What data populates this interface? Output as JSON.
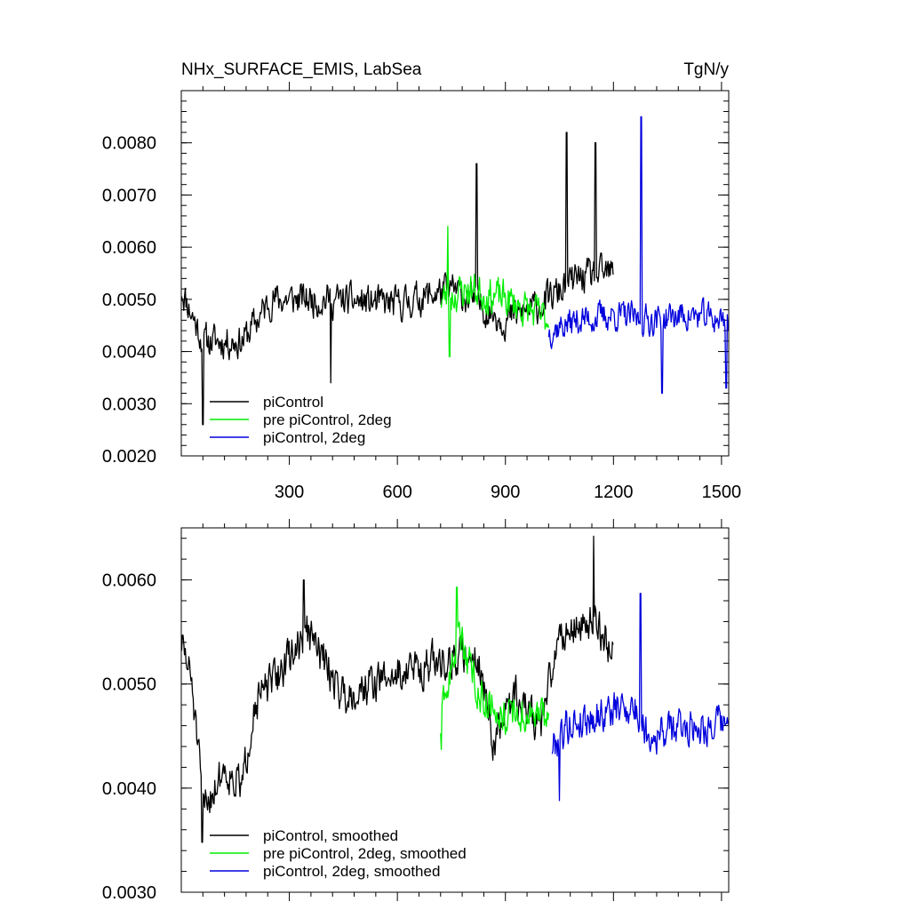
{
  "chart_data": [
    {
      "type": "line",
      "title_left": "NHx_SURFACE_EMIS, LabSea",
      "title_right": "TgN/y",
      "xlim": [
        0,
        1520
      ],
      "ylim": [
        0.002,
        0.009
      ],
      "x_ticks": [
        300,
        600,
        900,
        1200,
        1500
      ],
      "x_tick_labels": [
        "300",
        "600",
        "900",
        "1200",
        "1500"
      ],
      "y_ticks": [
        0.002,
        0.003,
        0.004,
        0.005,
        0.006,
        0.007,
        0.008
      ],
      "y_tick_labels": [
        "0.0020",
        "0.0030",
        "0.0040",
        "0.0050",
        "0.0060",
        "0.0070",
        "0.0080"
      ],
      "legend_position": "lower-left",
      "series": [
        {
          "name": "piControl",
          "color": "#000000",
          "x_range": [
            1,
            1200
          ],
          "level_points": [
            [
              1,
              0.0052
            ],
            [
              60,
              0.0042
            ],
            [
              170,
              0.0042
            ],
            [
              250,
              0.005
            ],
            [
              400,
              0.005
            ],
            [
              600,
              0.0049
            ],
            [
              750,
              0.0052
            ],
            [
              900,
              0.0046
            ],
            [
              1000,
              0.0049
            ],
            [
              1100,
              0.0054
            ],
            [
              1200,
              0.0055
            ]
          ],
          "amplitude": 0.0005,
          "spikes": [
            [
              1070,
              0.0082
            ],
            [
              1150,
              0.008
            ],
            [
              820,
              0.0076
            ],
            [
              415,
              0.0034
            ],
            [
              60,
              0.0026
            ]
          ],
          "seed": 11
        },
        {
          "name": "pre piControl, 2deg",
          "color": "#00ee00",
          "x_range": [
            720,
            1020
          ],
          "level_points": [
            [
              720,
              0.005
            ],
            [
              800,
              0.0052
            ],
            [
              900,
              0.005
            ],
            [
              1020,
              0.0046
            ]
          ],
          "amplitude": 0.00055,
          "spikes": [
            [
              740,
              0.0064
            ],
            [
              745,
              0.0039
            ]
          ],
          "seed": 23
        },
        {
          "name": "piControl, 2deg",
          "color": "#0000dd",
          "x_range": [
            1020,
            1520
          ],
          "level_points": [
            [
              1020,
              0.0044
            ],
            [
              1100,
              0.0046
            ],
            [
              1200,
              0.0047
            ],
            [
              1300,
              0.0046
            ],
            [
              1400,
              0.0047
            ],
            [
              1520,
              0.0046
            ]
          ],
          "amplitude": 0.00045,
          "spikes": [
            [
              1277,
              0.0085
            ],
            [
              1335,
              0.0032
            ],
            [
              1513,
              0.0033
            ]
          ],
          "seed": 37
        }
      ]
    },
    {
      "type": "line",
      "xlim": [
        0,
        1520
      ],
      "ylim": [
        0.003,
        0.0065
      ],
      "x_ticks": [
        300,
        600,
        900,
        1200,
        1500
      ],
      "x_tick_labels": [],
      "y_ticks": [
        0.003,
        0.004,
        0.005,
        0.006
      ],
      "y_tick_labels": [
        "0.0030",
        "0.0040",
        "0.0050",
        "0.0060"
      ],
      "legend_position": "lower-left",
      "series": [
        {
          "name": "piControl, smoothed",
          "color": "#000000",
          "x_range": [
            1,
            1200
          ],
          "level_points": [
            [
              1,
              0.0054
            ],
            [
              30,
              0.005
            ],
            [
              60,
              0.0038
            ],
            [
              120,
              0.0042
            ],
            [
              170,
              0.004
            ],
            [
              200,
              0.0048
            ],
            [
              250,
              0.005
            ],
            [
              350,
              0.0055
            ],
            [
              450,
              0.0049
            ],
            [
              600,
              0.0051
            ],
            [
              700,
              0.0052
            ],
            [
              820,
              0.0053
            ],
            [
              870,
              0.0044
            ],
            [
              920,
              0.0049
            ],
            [
              1000,
              0.0046
            ],
            [
              1050,
              0.0055
            ],
            [
              1150,
              0.0056
            ],
            [
              1200,
              0.0053
            ]
          ],
          "amplitude": 0.0003,
          "spikes": [
            [
              1145,
              0.00642
            ],
            [
              58,
              0.00348
            ],
            [
              340,
              0.006
            ]
          ],
          "seed": 51
        },
        {
          "name": "pre piControl, 2deg, smoothed",
          "color": "#00ee00",
          "x_range": [
            720,
            1020
          ],
          "level_points": [
            [
              720,
              0.0046
            ],
            [
              770,
              0.0055
            ],
            [
              830,
              0.0049
            ],
            [
              900,
              0.0047
            ],
            [
              1020,
              0.0047
            ]
          ],
          "amplitude": 0.00028,
          "spikes": [
            [
              765,
              0.00593
            ],
            [
              722,
              0.00437
            ]
          ],
          "seed": 63
        },
        {
          "name": "piControl, 2deg, smoothed",
          "color": "#0000dd",
          "x_range": [
            1030,
            1520
          ],
          "level_points": [
            [
              1030,
              0.0044
            ],
            [
              1070,
              0.0046
            ],
            [
              1150,
              0.0047
            ],
            [
              1250,
              0.0048
            ],
            [
              1300,
              0.0045
            ],
            [
              1400,
              0.0046
            ],
            [
              1500,
              0.0046
            ],
            [
              1520,
              0.0046
            ]
          ],
          "amplitude": 0.00028,
          "spikes": [
            [
              1275,
              0.00587
            ],
            [
              1050,
              0.00388
            ]
          ],
          "seed": 79
        }
      ]
    }
  ]
}
